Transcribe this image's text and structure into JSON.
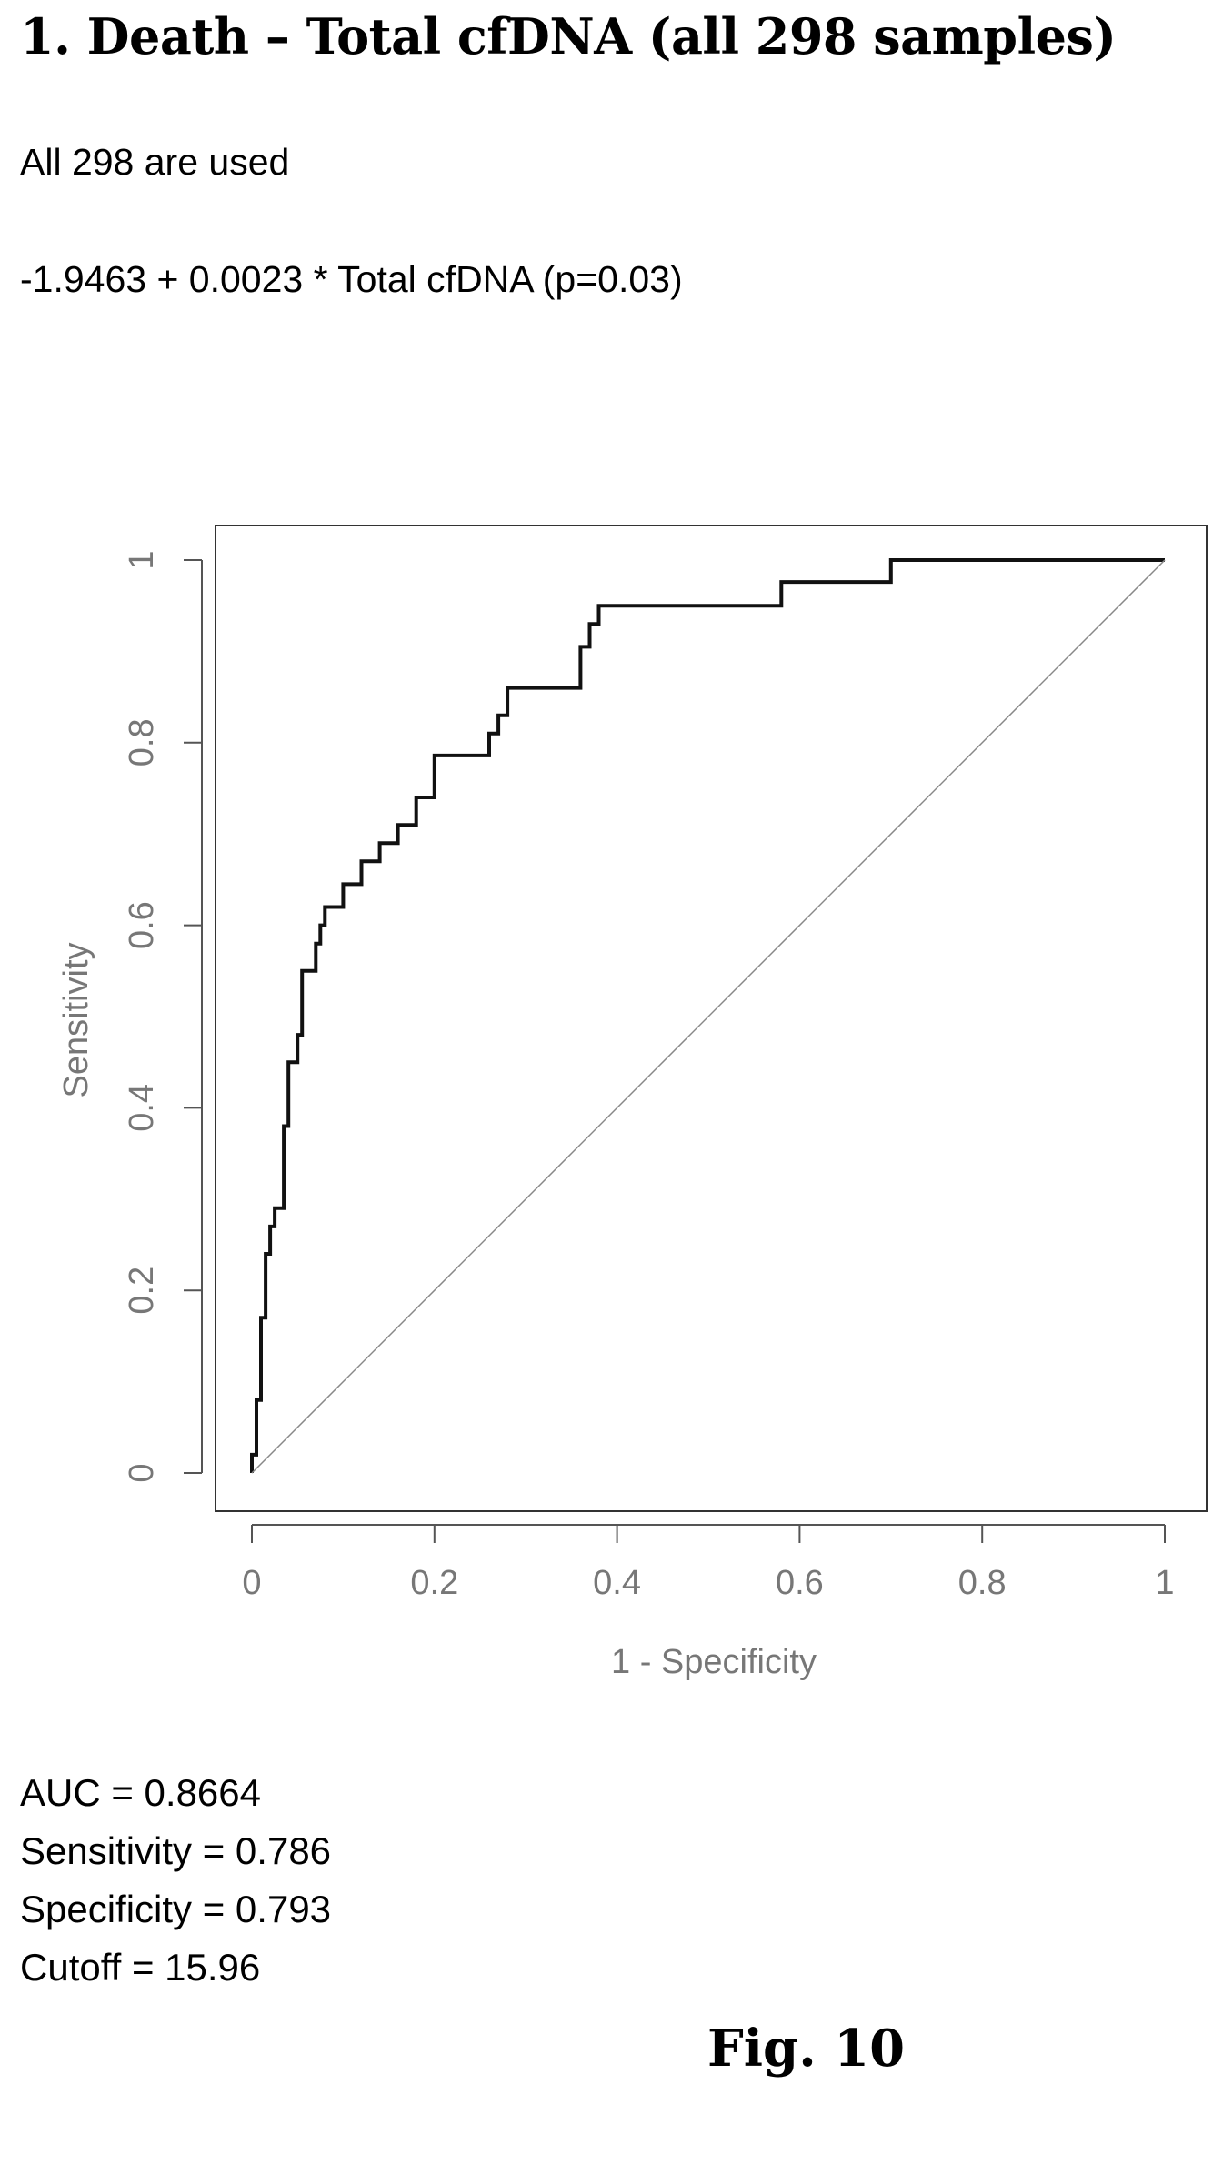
{
  "header": {
    "title": "1. Death – Total cfDNA (all 298 samples)",
    "subtitle": "All 298 are used",
    "equation": "-1.9463 + 0.0023 * Total cfDNA  (p=0.03)"
  },
  "chart_data": {
    "type": "line",
    "xlabel": "1 - Specificity",
    "ylabel": "Sensitivity",
    "xlim": [
      0,
      1
    ],
    "ylim": [
      0,
      1
    ],
    "xticks": [
      "0",
      "0.2",
      "0.4",
      "0.6",
      "0.8",
      "1"
    ],
    "yticks": [
      "0",
      "0.2",
      "0.4",
      "0.6",
      "0.8",
      "1"
    ],
    "grid": false,
    "series": [
      {
        "style": "step",
        "x": [
          0,
          0,
          0.005,
          0.005,
          0.01,
          0.01,
          0.015,
          0.015,
          0.02,
          0.02,
          0.025,
          0.025,
          0.035,
          0.035,
          0.04,
          0.04,
          0.05,
          0.05,
          0.055,
          0.055,
          0.07,
          0.07,
          0.075,
          0.075,
          0.08,
          0.08,
          0.1,
          0.1,
          0.12,
          0.12,
          0.14,
          0.14,
          0.16,
          0.16,
          0.18,
          0.18,
          0.2,
          0.2,
          0.26,
          0.26,
          0.27,
          0.27,
          0.28,
          0.28,
          0.3,
          0.3,
          0.36,
          0.36,
          0.37,
          0.37,
          0.38,
          0.38,
          0.39,
          0.39,
          0.58,
          0.58,
          0.7,
          0.7,
          1
        ],
        "y": [
          0,
          0.02,
          0.02,
          0.08,
          0.08,
          0.17,
          0.17,
          0.24,
          0.24,
          0.27,
          0.27,
          0.29,
          0.29,
          0.38,
          0.38,
          0.45,
          0.45,
          0.48,
          0.48,
          0.55,
          0.55,
          0.58,
          0.58,
          0.6,
          0.6,
          0.62,
          0.62,
          0.645,
          0.645,
          0.67,
          0.67,
          0.69,
          0.69,
          0.71,
          0.71,
          0.74,
          0.74,
          0.786,
          0.786,
          0.81,
          0.81,
          0.83,
          0.83,
          0.86,
          0.86,
          0.86,
          0.86,
          0.905,
          0.905,
          0.93,
          0.93,
          0.95,
          0.95,
          0.95,
          0.95,
          0.976,
          0.976,
          1.0,
          1.0
        ]
      },
      {
        "style": "reference-diagonal",
        "x": [
          0,
          1
        ],
        "y": [
          0,
          1
        ]
      }
    ]
  },
  "stats": {
    "auc": "AUC = 0.8664",
    "sensitivity": "Sensitivity = 0.786",
    "specificity": "Specificity = 0.793",
    "cutoff": "Cutoff = 15.96"
  },
  "figure_label": "Fig. 10"
}
